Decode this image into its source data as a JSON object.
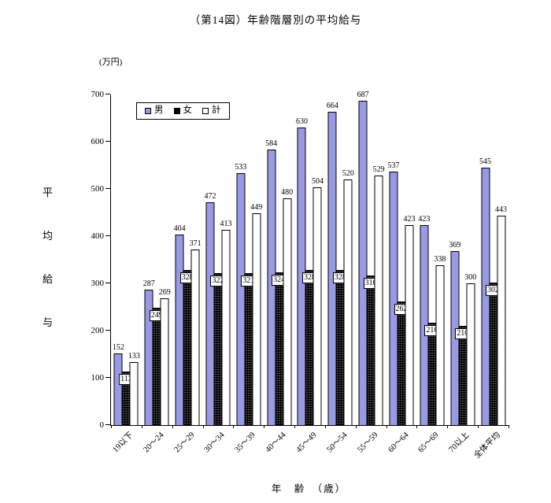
{
  "title": "（第14図）年齢階層別の平均給与",
  "unit_label": "(万円)",
  "y_axis_title_chars": [
    "平",
    "均",
    "給",
    "与"
  ],
  "x_axis_label": "年　齢　（歳）",
  "chart_data": {
    "type": "bar",
    "title": "（第14図）年齢階層別の平均給与",
    "unit": "万円",
    "ylabel": "平均給与",
    "xlabel": "年齢（歳）",
    "ylim": [
      0,
      700
    ],
    "y_ticks": [
      0,
      100,
      200,
      300,
      400,
      500,
      600,
      700
    ],
    "grid": false,
    "legend_position": "top-left-inside",
    "categories": [
      "19以下",
      "20〜24",
      "25〜29",
      "30〜34",
      "35〜39",
      "40〜44",
      "45〜49",
      "50〜54",
      "55〜59",
      "60〜64",
      "65〜69",
      "70以上",
      "全体平均"
    ],
    "series": [
      {
        "name": "男",
        "color": "#9a99e4",
        "values": [
          152,
          287,
          404,
          472,
          533,
          584,
          630,
          664,
          687,
          537,
          423,
          369,
          545
        ]
      },
      {
        "name": "女",
        "color": "#000000",
        "values": [
          113,
          249,
          328,
          322,
          321,
          324,
          328,
          328,
          316,
          262,
          216,
          210,
          302
        ]
      },
      {
        "name": "計",
        "color": "#ffffff",
        "values": [
          133,
          269,
          371,
          413,
          449,
          480,
          504,
          520,
          529,
          423,
          338,
          300,
          443
        ]
      }
    ]
  }
}
